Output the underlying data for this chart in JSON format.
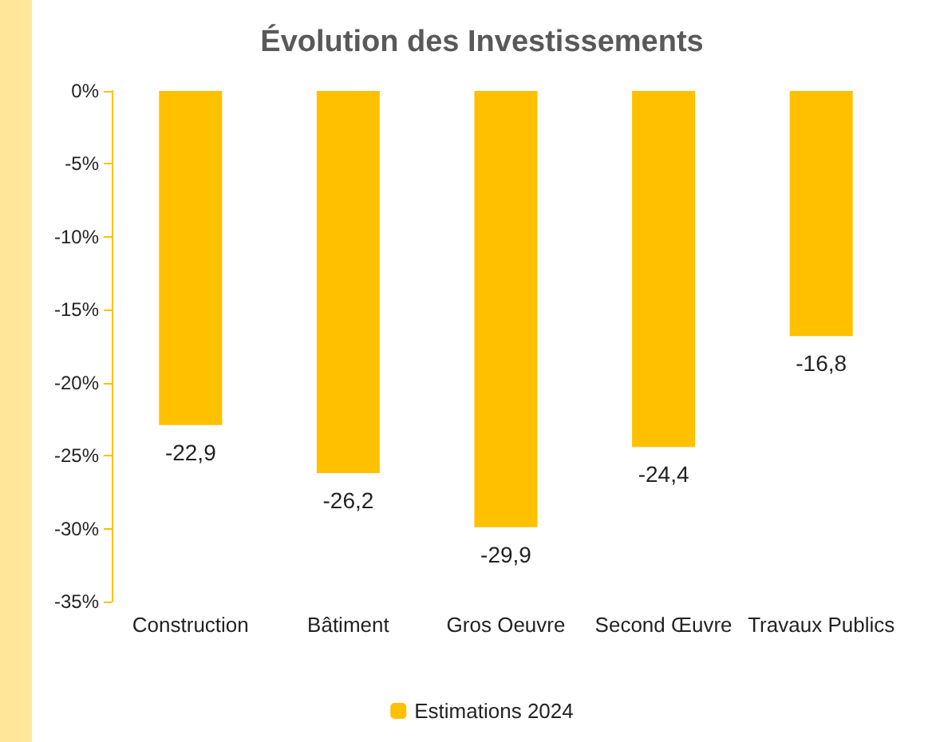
{
  "chart_data": {
    "type": "bar",
    "title": "Évolution des Investissements",
    "categories": [
      "Construction",
      "Bâtiment",
      "Gros Oeuvre",
      "Second Œuvre",
      "Travaux Publics"
    ],
    "series": [
      {
        "name": "Estimations 2024",
        "color": "#ffc000",
        "values": [
          -22.9,
          -26.2,
          -29.9,
          -24.4,
          -16.8
        ],
        "value_labels": [
          "-22,9",
          "-26,2",
          "-29,9",
          "-24,4",
          "-16,8"
        ]
      }
    ],
    "ylim": [
      -35,
      0
    ],
    "yticks": [
      {
        "value": 0,
        "label": "0%"
      },
      {
        "value": -5,
        "label": "-5%"
      },
      {
        "value": -10,
        "label": "-10%"
      },
      {
        "value": -15,
        "label": "-15%"
      },
      {
        "value": -20,
        "label": "-20%"
      },
      {
        "value": -25,
        "label": "-25%"
      },
      {
        "value": -30,
        "label": "-30%"
      },
      {
        "value": -35,
        "label": "-35%"
      }
    ],
    "grid": false,
    "legend": "bottom"
  }
}
